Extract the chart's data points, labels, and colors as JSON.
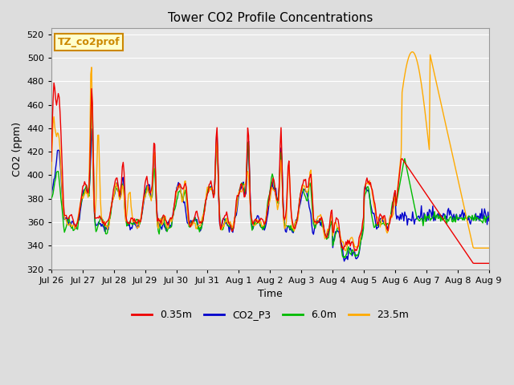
{
  "title": "Tower CO2 Profile Concentrations",
  "xlabel": "Time",
  "ylabel": "CO2 (ppm)",
  "ylim": [
    320,
    525
  ],
  "yticks": [
    320,
    340,
    360,
    380,
    400,
    420,
    440,
    460,
    480,
    500,
    520
  ],
  "annotation_label": "TZ_co2prof",
  "annotation_color": "#cc8800",
  "annotation_bg": "#ffffcc",
  "series_colors": {
    "0.35m": "#ee0000",
    "CO2_P3": "#0000cc",
    "6.0m": "#00bb00",
    "23.5m": "#ffaa00"
  },
  "series_lw": 1.0,
  "legend_labels": [
    "0.35m",
    "CO2_P3",
    "6.0m",
    "23.5m"
  ],
  "legend_colors": [
    "#ee0000",
    "#0000cc",
    "#00bb00",
    "#ffaa00"
  ],
  "bg_color": "#dddddd",
  "plot_bg": "#e8e8e8",
  "grid_color": "#ffffff",
  "tick_labels": [
    "Jul 26",
    "Jul 27",
    "Jul 28",
    "Jul 29",
    "Jul 30",
    "Jul 31",
    "Aug 1",
    "Aug 2",
    "Aug 3",
    "Aug 4",
    "Aug 5",
    "Aug 6",
    "Aug 7",
    "Aug 8",
    "Aug 9"
  ],
  "n_points": 500
}
